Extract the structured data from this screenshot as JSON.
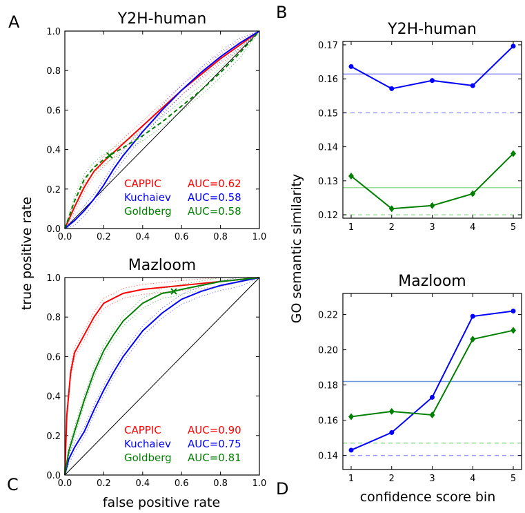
{
  "panels": {
    "A": "A",
    "B": "B",
    "C": "C",
    "D": "D"
  },
  "shared_labels": {
    "left_ylabel": "true positive rate",
    "left_xlabel": "false positive rate",
    "right_ylabel": "GO semantic similarity",
    "right_xlabel": "confidence score bin"
  },
  "colors": {
    "CAPPIC": "#ff0000",
    "Kuchaiev": "#0000ff",
    "Goldberg": "#008000",
    "diagonal": "#000000"
  },
  "chart_data": [
    {
      "id": "roc_y2h",
      "type": "line",
      "title": "Y2H-human",
      "xlim": [
        0,
        1
      ],
      "ylim": [
        0,
        1
      ],
      "xticks": [
        "0.0",
        "0.2",
        "0.4",
        "0.6",
        "0.8",
        "1.0"
      ],
      "yticks": [
        "0.0",
        "0.2",
        "0.4",
        "0.6",
        "0.8",
        "1.0"
      ],
      "legend": [
        {
          "method": "CAPPIC",
          "auc": "AUC=0.62",
          "color": "#ff0000"
        },
        {
          "method": "Kuchaiev",
          "auc": "AUC=0.58",
          "color": "#0000ff"
        },
        {
          "method": "Goldberg",
          "auc": "AUC=0.58",
          "color": "#008000"
        }
      ],
      "series": [
        {
          "name": "CAPPIC",
          "color": "#ff0000",
          "x": [
            0,
            0.05,
            0.1,
            0.15,
            0.2,
            0.3,
            0.4,
            0.5,
            0.6,
            0.7,
            0.8,
            0.9,
            1.0
          ],
          "y": [
            0,
            0.11,
            0.21,
            0.29,
            0.34,
            0.43,
            0.52,
            0.61,
            0.7,
            0.78,
            0.86,
            0.93,
            1.0
          ]
        },
        {
          "name": "Kuchaiev",
          "color": "#0000ff",
          "x": [
            0,
            0.05,
            0.1,
            0.15,
            0.2,
            0.25,
            0.3,
            0.4,
            0.5,
            0.6,
            0.7,
            0.8,
            0.9,
            1.0
          ],
          "y": [
            0,
            0.04,
            0.09,
            0.15,
            0.22,
            0.3,
            0.37,
            0.49,
            0.6,
            0.7,
            0.79,
            0.87,
            0.94,
            1.0
          ]
        },
        {
          "name": "Goldberg",
          "color": "#008000",
          "x": [
            0,
            0.05,
            0.1,
            0.15,
            0.2,
            0.23,
            0.3,
            0.4,
            0.5,
            0.6,
            0.7,
            0.8,
            0.9,
            1.0
          ],
          "y": [
            0,
            0.14,
            0.25,
            0.31,
            0.35,
            0.37,
            0.41,
            0.47,
            0.54,
            0.62,
            0.7,
            0.79,
            0.89,
            1.0
          ]
        }
      ],
      "marker_goldberg": [
        0.23,
        0.37
      ]
    },
    {
      "id": "roc_mazloom",
      "type": "line",
      "title": "Mazloom",
      "xlim": [
        0,
        1
      ],
      "ylim": [
        0,
        1
      ],
      "xticks": [
        "0.0",
        "0.2",
        "0.4",
        "0.6",
        "0.8",
        "1.0"
      ],
      "yticks": [
        "0.0",
        "0.2",
        "0.4",
        "0.6",
        "0.8",
        "1.0"
      ],
      "legend": [
        {
          "method": "CAPPIC",
          "auc": "AUC=0.90",
          "color": "#ff0000"
        },
        {
          "method": "Kuchaiev",
          "auc": "AUC=0.75",
          "color": "#0000ff"
        },
        {
          "method": "Goldberg",
          "auc": "AUC=0.81",
          "color": "#008000"
        }
      ],
      "series": [
        {
          "name": "CAPPIC",
          "color": "#ff0000",
          "x": [
            0,
            0.01,
            0.03,
            0.05,
            0.1,
            0.15,
            0.2,
            0.3,
            0.4,
            0.5,
            0.6,
            0.8,
            1.0
          ],
          "y": [
            0,
            0.3,
            0.52,
            0.62,
            0.71,
            0.8,
            0.87,
            0.92,
            0.94,
            0.95,
            0.96,
            0.98,
            1.0
          ]
        },
        {
          "name": "Kuchaiev",
          "color": "#0000ff",
          "x": [
            0,
            0.02,
            0.05,
            0.1,
            0.15,
            0.2,
            0.25,
            0.3,
            0.4,
            0.5,
            0.6,
            0.7,
            0.8,
            0.9,
            1.0
          ],
          "y": [
            0,
            0.08,
            0.14,
            0.22,
            0.33,
            0.43,
            0.52,
            0.6,
            0.73,
            0.82,
            0.89,
            0.93,
            0.96,
            0.98,
            1.0
          ]
        },
        {
          "name": "Goldberg",
          "color": "#008000",
          "x": [
            0,
            0.02,
            0.05,
            0.1,
            0.15,
            0.2,
            0.25,
            0.3,
            0.4,
            0.5,
            0.56,
            0.6,
            0.8,
            1.0
          ],
          "y": [
            0,
            0.12,
            0.22,
            0.38,
            0.52,
            0.63,
            0.71,
            0.78,
            0.87,
            0.92,
            0.93,
            0.94,
            0.98,
            1.0
          ]
        }
      ],
      "marker_goldberg": [
        0.56,
        0.93
      ]
    },
    {
      "id": "go_y2h",
      "type": "line",
      "title": "Y2H-human",
      "categories": [
        "1",
        "2",
        "3",
        "4",
        "5"
      ],
      "ylim": [
        0.119,
        0.171
      ],
      "yticks": [
        "0.12",
        "0.13",
        "0.14",
        "0.15",
        "0.16",
        "0.17"
      ],
      "series": [
        {
          "name": "Kuchaiev",
          "color": "#0000ff",
          "marker": "circle",
          "values": [
            0.1636,
            0.1571,
            0.1595,
            0.158,
            0.1696
          ]
        },
        {
          "name": "Goldberg",
          "color": "#008000",
          "marker": "diamond",
          "values": [
            0.1314,
            0.1218,
            0.1227,
            0.1262,
            0.138
          ]
        }
      ],
      "hlines": [
        {
          "color": "#9999ff",
          "style": "solid",
          "value": 0.1614
        },
        {
          "color": "#9999ff",
          "style": "dashed",
          "value": 0.15
        },
        {
          "color": "#99dd99",
          "style": "solid",
          "value": 0.128
        },
        {
          "color": "#99dd99",
          "style": "dashed",
          "value": 0.12
        }
      ]
    },
    {
      "id": "go_mazloom",
      "type": "line",
      "title": "Mazloom",
      "categories": [
        "1",
        "2",
        "3",
        "4",
        "5"
      ],
      "ylim": [
        0.132,
        0.232
      ],
      "yticks": [
        "0.14",
        "0.16",
        "0.18",
        "0.20",
        "0.22"
      ],
      "series": [
        {
          "name": "Kuchaiev",
          "color": "#0000ff",
          "marker": "circle",
          "values": [
            0.143,
            0.153,
            0.173,
            0.219,
            0.222
          ]
        },
        {
          "name": "Goldberg",
          "color": "#008000",
          "marker": "diamond",
          "values": [
            0.162,
            0.165,
            0.163,
            0.206,
            0.211
          ]
        }
      ],
      "hlines": [
        {
          "color": "#6699dd",
          "style": "solid",
          "value": 0.182
        },
        {
          "color": "#99dd99",
          "style": "dashed",
          "value": 0.147
        },
        {
          "color": "#9999ff",
          "style": "dashed",
          "value": 0.14
        }
      ]
    }
  ]
}
